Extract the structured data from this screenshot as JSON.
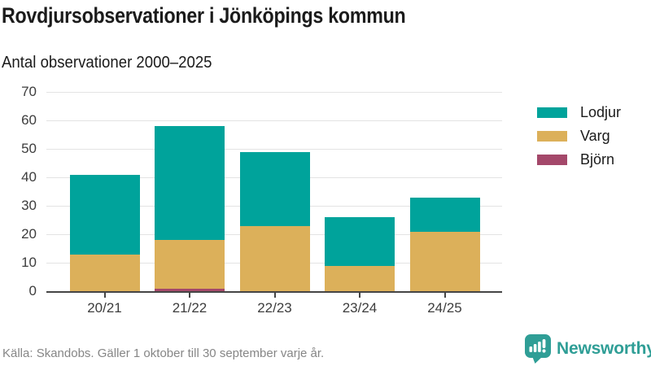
{
  "header": {
    "title": "Rovdjursobservationer i Jönköpings kommun",
    "subtitle": "Antal observationer 2000–2025"
  },
  "chart_data": {
    "type": "bar",
    "stacked": true,
    "categories": [
      "20/21",
      "21/22",
      "22/23",
      "23/24",
      "24/25"
    ],
    "series": [
      {
        "name": "Lodjur",
        "color": "#00a39b",
        "values": [
          28,
          40,
          26,
          17,
          12
        ]
      },
      {
        "name": "Varg",
        "color": "#dcb05a",
        "values": [
          13,
          17,
          23,
          9,
          21
        ]
      },
      {
        "name": "Björn",
        "color": "#a4486a",
        "values": [
          0,
          1,
          0,
          0,
          0
        ]
      }
    ],
    "totals": [
      41,
      58,
      49,
      26,
      33
    ],
    "title": "Rovdjursobservationer i Jönköpings kommun",
    "subtitle": "Antal observationer 2000–2025",
    "xlabel": "",
    "ylabel": "",
    "ylim": [
      0,
      70
    ],
    "ytick_step": 10,
    "grid": "horizontal",
    "legend_position": "right"
  },
  "colors": {
    "lodjur": "#00a39b",
    "varg": "#dcb05a",
    "bjorn": "#a4486a",
    "brand_teal": "#2f9e96",
    "axis": "#454545",
    "gridline": "#e3e3e3",
    "text_dark": "#1b1b1b",
    "text_muted": "#868686"
  },
  "footer": {
    "source": "Källa: Skandobs. Gäller 1 oktober till 30 september varje år.",
    "brand": "Newsworthy"
  }
}
